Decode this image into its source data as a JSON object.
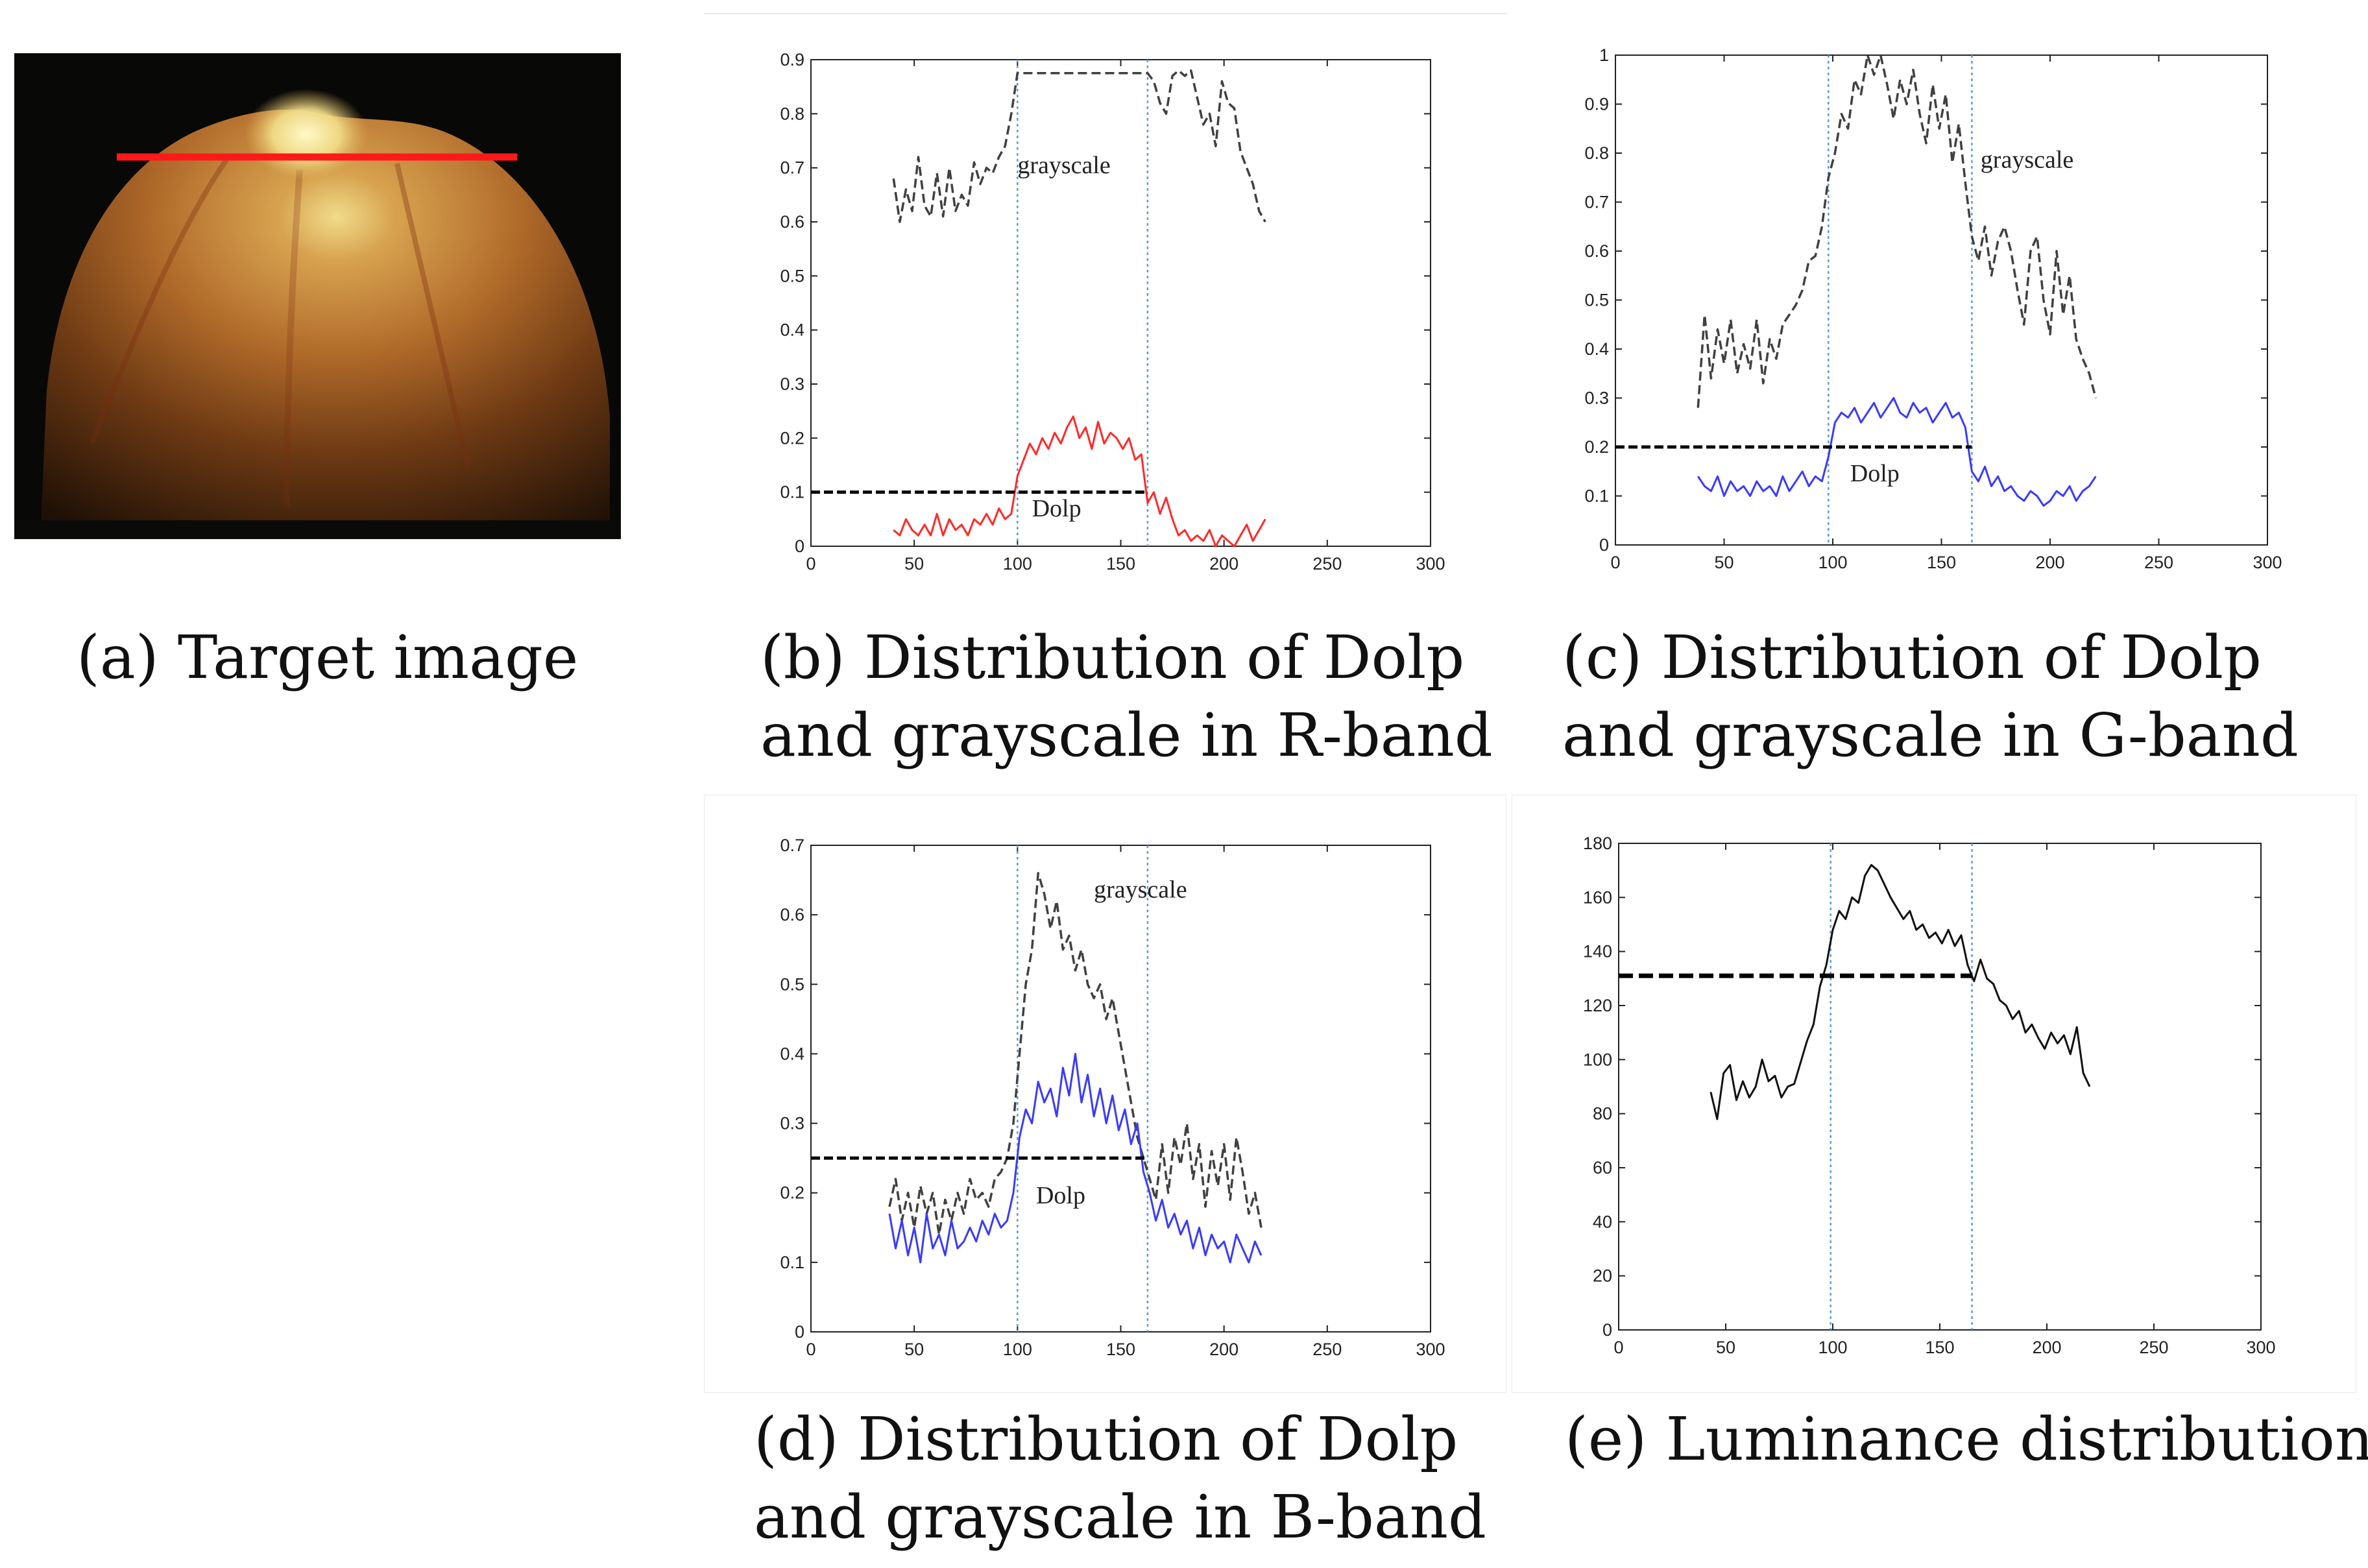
{
  "captions": {
    "a": "(a) Target image",
    "b1": "(b) Distribution of Dolp",
    "b2": "and grayscale in R-band",
    "c1": "(c) Distribution of Dolp",
    "c2": "and grayscale in G-band",
    "d1": "(d) Distribution of Dolp",
    "d2": "and grayscale in B-band",
    "e1": "(e) Luminance distribution"
  },
  "colors": {
    "grayscale_line": "#404040",
    "dolp_red": "#ff2a2a",
    "dolp_blue": "#3a3aff",
    "luminance": "#111111",
    "threshold": "#000000",
    "boundary": "#5b9bd5",
    "scan_line": "#ff1a1a"
  },
  "chart_data": [
    {
      "id": "b",
      "type": "line",
      "xlim": [
        0,
        300
      ],
      "ylim": [
        0,
        0.9
      ],
      "xticks": [
        0,
        50,
        100,
        150,
        200,
        250,
        300
      ],
      "yticks": [
        0,
        0.1,
        0.2,
        0.3,
        0.4,
        0.5,
        0.6,
        0.7,
        0.8,
        0.9
      ],
      "ytick_labels": [
        "0",
        "0.1",
        "0.2",
        "0.3",
        "0.4",
        "0.5",
        "0.6",
        "0.7",
        "0.8",
        "0.9"
      ],
      "vlines": [
        100,
        163
      ],
      "threshold": {
        "y": 0.1,
        "x": [
          0,
          163
        ]
      },
      "annotations": [
        {
          "text": "grayscale",
          "x": 100,
          "y": 0.69
        },
        {
          "text": "Dolp",
          "x": 107,
          "y": 0.055
        }
      ],
      "series": [
        {
          "style": "dashed",
          "color_key": "grayscale_line",
          "x": [
            40,
            43,
            46,
            49,
            52,
            55,
            58,
            61,
            64,
            67,
            70,
            73,
            76,
            79,
            82,
            85,
            88,
            91,
            94,
            97,
            100,
            163,
            166,
            169,
            172,
            175,
            178,
            181,
            184,
            187,
            190,
            193,
            196,
            199,
            202,
            205,
            208,
            211,
            214,
            217,
            220
          ],
          "y": [
            0.68,
            0.6,
            0.66,
            0.62,
            0.72,
            0.63,
            0.61,
            0.69,
            0.61,
            0.7,
            0.62,
            0.65,
            0.63,
            0.71,
            0.67,
            0.7,
            0.69,
            0.72,
            0.74,
            0.8,
            0.875,
            0.875,
            0.86,
            0.82,
            0.8,
            0.87,
            0.88,
            0.87,
            0.88,
            0.83,
            0.78,
            0.8,
            0.74,
            0.86,
            0.82,
            0.81,
            0.73,
            0.7,
            0.67,
            0.62,
            0.6
          ]
        },
        {
          "style": "solid",
          "color_key": "dolp_red",
          "x": [
            40,
            43,
            46,
            49,
            52,
            55,
            58,
            61,
            64,
            67,
            70,
            73,
            76,
            79,
            82,
            85,
            88,
            91,
            94,
            97,
            100,
            103,
            106,
            109,
            112,
            115,
            118,
            121,
            124,
            127,
            130,
            133,
            136,
            139,
            142,
            145,
            148,
            151,
            154,
            157,
            160,
            163,
            166,
            169,
            172,
            175,
            178,
            181,
            184,
            187,
            190,
            193,
            196,
            199,
            202,
            205,
            208,
            211,
            214,
            217,
            220
          ],
          "y": [
            0.03,
            0.02,
            0.05,
            0.03,
            0.02,
            0.04,
            0.02,
            0.06,
            0.02,
            0.05,
            0.03,
            0.04,
            0.02,
            0.05,
            0.04,
            0.06,
            0.04,
            0.07,
            0.05,
            0.06,
            0.13,
            0.16,
            0.19,
            0.17,
            0.2,
            0.18,
            0.21,
            0.19,
            0.22,
            0.24,
            0.2,
            0.22,
            0.18,
            0.23,
            0.19,
            0.21,
            0.2,
            0.18,
            0.2,
            0.16,
            0.17,
            0.08,
            0.1,
            0.06,
            0.09,
            0.05,
            0.02,
            0.03,
            0.01,
            0.02,
            0.01,
            0.03,
            0.0,
            0.02,
            0.01,
            0.0,
            0.02,
            0.04,
            0.01,
            0.03,
            0.05
          ]
        }
      ]
    },
    {
      "id": "c",
      "type": "line",
      "xlim": [
        0,
        300
      ],
      "ylim": [
        0,
        1
      ],
      "xticks": [
        0,
        50,
        100,
        150,
        200,
        250,
        300
      ],
      "yticks": [
        0,
        0.1,
        0.2,
        0.3,
        0.4,
        0.5,
        0.6,
        0.7,
        0.8,
        0.9,
        1
      ],
      "ytick_labels": [
        "0",
        "0.1",
        "0.2",
        "0.3",
        "0.4",
        "0.5",
        "0.6",
        "0.7",
        "0.8",
        "0.9",
        "1"
      ],
      "vlines": [
        98,
        164
      ],
      "threshold": {
        "y": 0.2,
        "x": [
          0,
          164
        ]
      },
      "annotations": [
        {
          "text": "grayscale",
          "x": 168,
          "y": 0.77
        },
        {
          "text": "Dolp",
          "x": 108,
          "y": 0.13
        }
      ],
      "series": [
        {
          "style": "dashed",
          "color_key": "grayscale_line",
          "x": [
            38,
            41,
            44,
            47,
            50,
            53,
            56,
            59,
            62,
            65,
            68,
            71,
            74,
            77,
            80,
            83,
            86,
            89,
            92,
            95,
            98,
            101,
            104,
            107,
            110,
            113,
            116,
            119,
            122,
            125,
            128,
            131,
            134,
            137,
            140,
            143,
            146,
            149,
            152,
            155,
            158,
            161,
            164,
            167,
            170,
            173,
            176,
            179,
            182,
            185,
            188,
            191,
            194,
            197,
            200,
            203,
            206,
            209,
            212,
            215,
            218,
            221
          ],
          "y": [
            0.28,
            0.47,
            0.34,
            0.44,
            0.37,
            0.46,
            0.35,
            0.41,
            0.36,
            0.46,
            0.33,
            0.42,
            0.38,
            0.45,
            0.47,
            0.49,
            0.52,
            0.58,
            0.59,
            0.65,
            0.75,
            0.8,
            0.88,
            0.85,
            0.95,
            0.92,
            1.0,
            0.96,
            1.0,
            0.94,
            0.87,
            0.95,
            0.9,
            0.97,
            0.88,
            0.82,
            0.94,
            0.85,
            0.92,
            0.78,
            0.86,
            0.74,
            0.63,
            0.58,
            0.65,
            0.55,
            0.62,
            0.65,
            0.6,
            0.52,
            0.45,
            0.6,
            0.63,
            0.5,
            0.43,
            0.6,
            0.47,
            0.55,
            0.42,
            0.38,
            0.35,
            0.3
          ]
        },
        {
          "style": "solid",
          "color_key": "dolp_blue",
          "x": [
            38,
            41,
            44,
            47,
            50,
            53,
            56,
            59,
            62,
            65,
            68,
            71,
            74,
            77,
            80,
            83,
            86,
            89,
            92,
            95,
            98,
            101,
            104,
            107,
            110,
            113,
            116,
            119,
            122,
            125,
            128,
            131,
            134,
            137,
            140,
            143,
            146,
            149,
            152,
            155,
            158,
            161,
            164,
            167,
            170,
            173,
            176,
            179,
            182,
            185,
            188,
            191,
            194,
            197,
            200,
            203,
            206,
            209,
            212,
            215,
            218,
            221
          ],
          "y": [
            0.14,
            0.12,
            0.11,
            0.14,
            0.1,
            0.13,
            0.11,
            0.12,
            0.1,
            0.13,
            0.11,
            0.12,
            0.1,
            0.14,
            0.11,
            0.13,
            0.15,
            0.12,
            0.14,
            0.13,
            0.18,
            0.25,
            0.27,
            0.26,
            0.28,
            0.25,
            0.27,
            0.29,
            0.26,
            0.28,
            0.3,
            0.27,
            0.26,
            0.29,
            0.27,
            0.28,
            0.25,
            0.27,
            0.29,
            0.26,
            0.27,
            0.24,
            0.15,
            0.13,
            0.16,
            0.12,
            0.14,
            0.11,
            0.12,
            0.1,
            0.09,
            0.11,
            0.1,
            0.08,
            0.09,
            0.11,
            0.1,
            0.12,
            0.09,
            0.11,
            0.12,
            0.14
          ]
        }
      ]
    },
    {
      "id": "d",
      "type": "line",
      "xlim": [
        0,
        300
      ],
      "ylim": [
        0,
        0.7
      ],
      "xticks": [
        0,
        50,
        100,
        150,
        200,
        250,
        300
      ],
      "yticks": [
        0,
        0.1,
        0.2,
        0.3,
        0.4,
        0.5,
        0.6,
        0.7
      ],
      "ytick_labels": [
        "0",
        "0.1",
        "0.2",
        "0.3",
        "0.4",
        "0.5",
        "0.6",
        "0.7"
      ],
      "vlines": [
        100,
        163
      ],
      "threshold": {
        "y": 0.25,
        "x": [
          0,
          163
        ]
      },
      "annotations": [
        {
          "text": "grayscale",
          "x": 137,
          "y": 0.625
        },
        {
          "text": "Dolp",
          "x": 109,
          "y": 0.185
        }
      ],
      "series": [
        {
          "style": "dashed",
          "color_key": "grayscale_line",
          "x": [
            38,
            41,
            44,
            47,
            50,
            53,
            56,
            59,
            62,
            65,
            68,
            71,
            74,
            77,
            80,
            83,
            86,
            89,
            92,
            95,
            98,
            101,
            104,
            107,
            110,
            113,
            116,
            119,
            122,
            125,
            128,
            131,
            134,
            137,
            140,
            143,
            146,
            149,
            152,
            155,
            158,
            161,
            164,
            167,
            170,
            173,
            176,
            179,
            182,
            185,
            188,
            191,
            194,
            197,
            200,
            203,
            206,
            209,
            212,
            215,
            218
          ],
          "y": [
            0.18,
            0.22,
            0.16,
            0.2,
            0.15,
            0.21,
            0.17,
            0.2,
            0.14,
            0.19,
            0.16,
            0.2,
            0.17,
            0.22,
            0.19,
            0.2,
            0.18,
            0.22,
            0.23,
            0.25,
            0.3,
            0.4,
            0.5,
            0.55,
            0.66,
            0.63,
            0.58,
            0.62,
            0.55,
            0.57,
            0.52,
            0.55,
            0.5,
            0.48,
            0.5,
            0.45,
            0.48,
            0.43,
            0.38,
            0.33,
            0.28,
            0.25,
            0.22,
            0.19,
            0.27,
            0.2,
            0.28,
            0.24,
            0.3,
            0.22,
            0.27,
            0.18,
            0.26,
            0.21,
            0.27,
            0.19,
            0.28,
            0.23,
            0.17,
            0.2,
            0.15
          ]
        },
        {
          "style": "solid",
          "color_key": "dolp_blue",
          "x": [
            38,
            41,
            44,
            47,
            50,
            53,
            56,
            59,
            62,
            65,
            68,
            71,
            74,
            77,
            80,
            83,
            86,
            89,
            92,
            95,
            98,
            101,
            104,
            107,
            110,
            113,
            116,
            119,
            122,
            125,
            128,
            131,
            134,
            137,
            140,
            143,
            146,
            149,
            152,
            155,
            158,
            161,
            164,
            167,
            170,
            173,
            176,
            179,
            182,
            185,
            188,
            191,
            194,
            197,
            200,
            203,
            206,
            209,
            212,
            215,
            218
          ],
          "y": [
            0.17,
            0.12,
            0.16,
            0.11,
            0.15,
            0.1,
            0.17,
            0.12,
            0.14,
            0.11,
            0.16,
            0.12,
            0.13,
            0.15,
            0.13,
            0.16,
            0.14,
            0.17,
            0.15,
            0.16,
            0.2,
            0.28,
            0.32,
            0.3,
            0.36,
            0.33,
            0.35,
            0.31,
            0.38,
            0.34,
            0.4,
            0.33,
            0.37,
            0.31,
            0.35,
            0.3,
            0.34,
            0.29,
            0.32,
            0.27,
            0.3,
            0.23,
            0.2,
            0.16,
            0.19,
            0.15,
            0.17,
            0.14,
            0.16,
            0.12,
            0.15,
            0.11,
            0.14,
            0.12,
            0.13,
            0.1,
            0.14,
            0.12,
            0.1,
            0.13,
            0.11
          ]
        }
      ]
    },
    {
      "id": "e",
      "type": "line",
      "xlim": [
        0,
        300
      ],
      "ylim": [
        0,
        180
      ],
      "xticks": [
        0,
        50,
        100,
        150,
        200,
        250,
        300
      ],
      "yticks": [
        0,
        20,
        40,
        60,
        80,
        100,
        120,
        140,
        160,
        180
      ],
      "ytick_labels": [
        "0",
        "20",
        "40",
        "60",
        "80",
        "100",
        "120",
        "140",
        "160",
        "180"
      ],
      "vlines": [
        99,
        165
      ],
      "threshold": {
        "y": 131,
        "x": [
          0,
          165
        ]
      },
      "annotations": [],
      "series": [
        {
          "style": "solid",
          "color_key": "luminance",
          "x": [
            43,
            46,
            49,
            52,
            55,
            58,
            61,
            64,
            67,
            70,
            73,
            76,
            79,
            82,
            85,
            88,
            91,
            94,
            97,
            100,
            103,
            106,
            109,
            112,
            115,
            118,
            121,
            124,
            127,
            130,
            133,
            136,
            139,
            142,
            145,
            148,
            151,
            154,
            157,
            160,
            163,
            166,
            169,
            172,
            175,
            178,
            181,
            184,
            187,
            190,
            193,
            196,
            199,
            202,
            205,
            208,
            211,
            214,
            217,
            220
          ],
          "y": [
            88,
            78,
            95,
            98,
            85,
            92,
            86,
            90,
            100,
            92,
            94,
            86,
            90,
            91,
            99,
            107,
            113,
            127,
            135,
            148,
            155,
            152,
            160,
            158,
            168,
            172,
            170,
            165,
            160,
            156,
            152,
            155,
            148,
            150,
            145,
            147,
            143,
            148,
            142,
            146,
            135,
            129,
            137,
            130,
            128,
            122,
            120,
            115,
            118,
            110,
            113,
            108,
            104,
            110,
            106,
            109,
            102,
            112,
            95,
            90
          ]
        }
      ]
    }
  ]
}
